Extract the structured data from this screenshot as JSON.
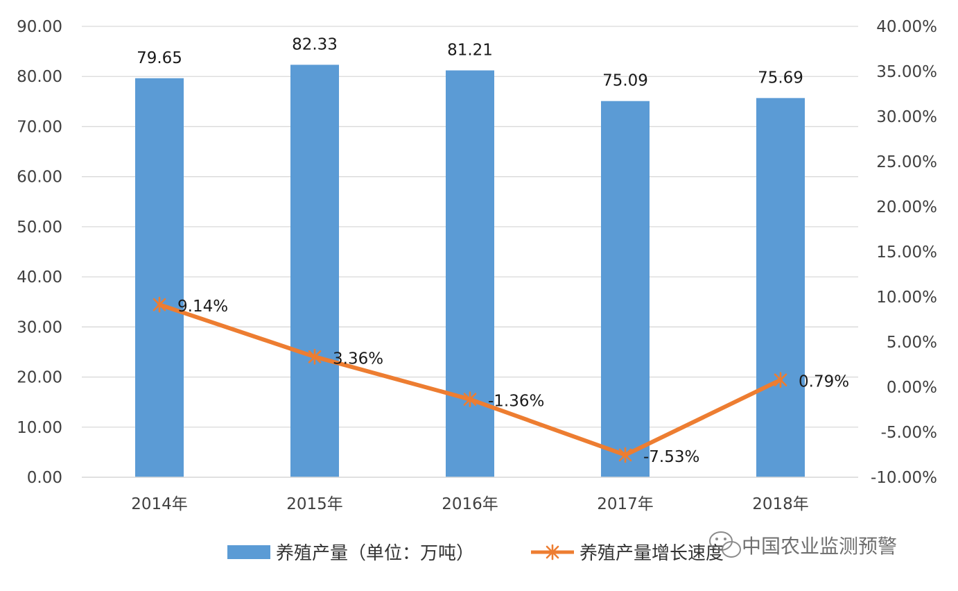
{
  "chart_data": {
    "type": "bar+line",
    "categories": [
      "2014年",
      "2015年",
      "2016年",
      "2017年",
      "2018年"
    ],
    "series": [
      {
        "name": "养殖产量（单位：万吨）",
        "type": "bar",
        "axis": "left",
        "values": [
          79.65,
          82.33,
          81.21,
          75.09,
          75.69
        ],
        "labels": [
          "79.65",
          "82.33",
          "81.21",
          "75.09",
          "75.69"
        ]
      },
      {
        "name": "养殖产量增长速度",
        "type": "line",
        "axis": "right",
        "values": [
          9.14,
          3.36,
          -1.36,
          -7.53,
          0.79
        ],
        "labels": [
          "9.14%",
          "3.36%",
          "-1.36%",
          "-7.53%",
          "0.79%"
        ]
      }
    ],
    "left_axis": {
      "ylim": [
        0,
        90
      ],
      "ticks": [
        "0.00",
        "10.00",
        "20.00",
        "30.00",
        "40.00",
        "50.00",
        "60.00",
        "70.00",
        "80.00",
        "90.00"
      ]
    },
    "right_axis": {
      "ylim": [
        -10,
        40
      ],
      "ticks": [
        "-10.00%",
        "-5.00%",
        "0.00%",
        "5.00%",
        "10.00%",
        "15.00%",
        "20.00%",
        "25.00%",
        "30.00%",
        "35.00%",
        "40.00%"
      ]
    },
    "grid": true,
    "legend_position": "bottom",
    "colors": {
      "bar": "#5b9bd5",
      "line": "#ed7d31",
      "grid": "#d9d9d9"
    }
  },
  "watermark": {
    "text": "中国农业监测预警",
    "icon": "wechat-icon"
  }
}
